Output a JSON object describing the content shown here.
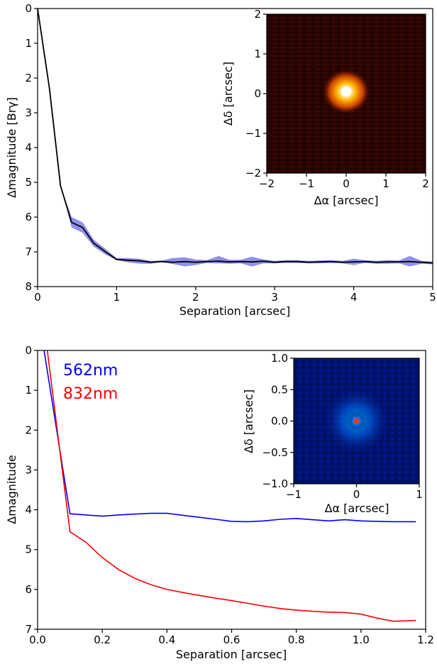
{
  "colors": {
    "band": "#7b7bea",
    "contrast_line": "#000000",
    "series_562": "#0000ff",
    "series_832": "#ff0000"
  },
  "chart_data": [
    {
      "type": "line",
      "xlabel": "Separation [arcsec]",
      "ylabel": "Δmagnitude [Brγ]",
      "xlim": [
        0,
        5
      ],
      "ylim": [
        8,
        0
      ],
      "y_inverted": true,
      "xticks": [
        "0",
        "1",
        "2",
        "3",
        "4",
        "5"
      ],
      "yticks": [
        "0",
        "1",
        "2",
        "3",
        "4",
        "5",
        "6",
        "7",
        "8"
      ],
      "grid": false,
      "series": [
        {
          "x": [
            0,
            0.15,
            0.29,
            0.43,
            0.57,
            0.71,
            0.86,
            1.0,
            1.14,
            1.29,
            1.43,
            1.57,
            1.71,
            1.86,
            2.0,
            2.14,
            2.29,
            2.43,
            2.57,
            2.71,
            2.86,
            3.0,
            3.14,
            3.29,
            3.43,
            3.57,
            3.71,
            3.86,
            4.0,
            4.14,
            4.29,
            4.43,
            4.57,
            4.71,
            4.86,
            5.0
          ],
          "y": [
            0.0,
            2.3,
            5.1,
            6.15,
            6.3,
            6.75,
            7.0,
            7.22,
            7.24,
            7.26,
            7.3,
            7.28,
            7.3,
            7.28,
            7.3,
            7.28,
            7.27,
            7.29,
            7.28,
            7.29,
            7.27,
            7.3,
            7.28,
            7.28,
            7.3,
            7.29,
            7.28,
            7.3,
            7.29,
            7.28,
            7.3,
            7.29,
            7.29,
            7.28,
            7.3,
            7.32
          ],
          "band_low": [
            0.0,
            2.3,
            5.1,
            6.3,
            6.45,
            6.85,
            7.08,
            7.24,
            7.3,
            7.34,
            7.34,
            7.3,
            7.35,
            7.42,
            7.38,
            7.32,
            7.33,
            7.34,
            7.33,
            7.42,
            7.33,
            7.33,
            7.32,
            7.32,
            7.33,
            7.33,
            7.32,
            7.33,
            7.38,
            7.32,
            7.34,
            7.34,
            7.33,
            7.42,
            7.34,
            7.36
          ],
          "band_high": [
            0.0,
            2.3,
            5.1,
            6.0,
            6.15,
            6.65,
            6.92,
            7.18,
            7.18,
            7.2,
            7.26,
            7.25,
            7.18,
            7.16,
            7.22,
            7.24,
            7.12,
            7.23,
            7.23,
            7.14,
            7.22,
            7.26,
            7.24,
            7.24,
            7.26,
            7.25,
            7.24,
            7.26,
            7.2,
            7.24,
            7.26,
            7.24,
            7.25,
            7.12,
            7.26,
            7.28
          ]
        }
      ],
      "inset": {
        "type": "heatmap",
        "xlabel": "Δα [arcsec]",
        "ylabel": "Δδ [arcsec]",
        "xlim": [
          -2,
          2
        ],
        "ylim": [
          -2,
          2
        ],
        "xticks": [
          "−2",
          "−1",
          "0",
          "1",
          "2"
        ],
        "yticks": [
          "−2",
          "−1",
          "0",
          "1",
          "2"
        ],
        "source_position": [
          0.0,
          0.05
        ]
      }
    },
    {
      "type": "line",
      "xlabel": "Separation [arcsec]",
      "ylabel": "Δmagnitude",
      "xlim": [
        0.0,
        1.2
      ],
      "ylim": [
        7,
        0
      ],
      "y_inverted": true,
      "xticks": [
        "0.0",
        "0.2",
        "0.4",
        "0.6",
        "0.8",
        "1.0",
        "1.2"
      ],
      "yticks": [
        "0",
        "1",
        "2",
        "3",
        "4",
        "5",
        "6",
        "7"
      ],
      "grid": false,
      "annotations": [
        "562nm",
        "832nm"
      ],
      "series": [
        {
          "name": "562nm",
          "x": [
            0.02,
            0.1,
            0.15,
            0.2,
            0.25,
            0.3,
            0.35,
            0.4,
            0.45,
            0.5,
            0.55,
            0.6,
            0.65,
            0.7,
            0.75,
            0.8,
            0.85,
            0.9,
            0.95,
            1.0,
            1.05,
            1.1,
            1.17
          ],
          "y": [
            0.0,
            4.1,
            4.13,
            4.16,
            4.13,
            4.11,
            4.09,
            4.09,
            4.14,
            4.19,
            4.24,
            4.29,
            4.3,
            4.28,
            4.24,
            4.22,
            4.25,
            4.28,
            4.25,
            4.28,
            4.29,
            4.3,
            4.3
          ]
        },
        {
          "name": "832nm",
          "x": [
            0.03,
            0.1,
            0.15,
            0.2,
            0.25,
            0.3,
            0.35,
            0.4,
            0.45,
            0.5,
            0.55,
            0.6,
            0.65,
            0.7,
            0.75,
            0.8,
            0.85,
            0.9,
            0.95,
            1.0,
            1.05,
            1.1,
            1.17
          ],
          "y": [
            0.0,
            4.55,
            4.82,
            5.2,
            5.5,
            5.72,
            5.88,
            6.0,
            6.08,
            6.15,
            6.22,
            6.28,
            6.35,
            6.42,
            6.48,
            6.52,
            6.55,
            6.57,
            6.58,
            6.62,
            6.72,
            6.8,
            6.78
          ]
        }
      ],
      "inset": {
        "type": "heatmap",
        "xlabel": "Δα [arcsec]",
        "ylabel": "Δδ [arcsec]",
        "xlim": [
          -1,
          1
        ],
        "ylim": [
          -1.0,
          1.0
        ],
        "xticks": [
          "−1",
          "0",
          "1"
        ],
        "yticks": [
          "−1.0",
          "−0.5",
          "0.0",
          "0.5",
          "1.0"
        ],
        "source_position": [
          0.0,
          0.0
        ]
      }
    }
  ]
}
